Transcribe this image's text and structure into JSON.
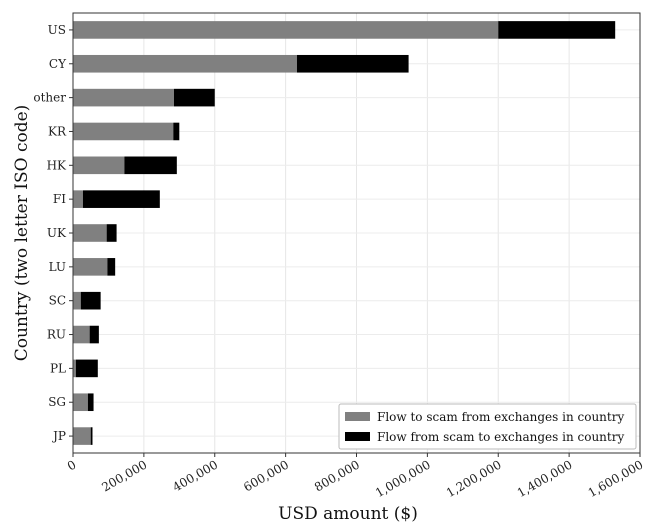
{
  "chart_data": {
    "type": "bar",
    "orientation": "horizontal",
    "stacked": true,
    "categories": [
      "US",
      "CY",
      "other",
      "KR",
      "HK",
      "FI",
      "UK",
      "LU",
      "SC",
      "RU",
      "PL",
      "SG",
      "JP"
    ],
    "series": [
      {
        "name": "Flow to scam from exchanges in country",
        "color": "#808080",
        "values": [
          1200000,
          632000,
          285000,
          283000,
          145000,
          28000,
          95000,
          97000,
          22000,
          47000,
          8000,
          42000,
          50000
        ]
      },
      {
        "name": "Flow from scam to exchanges in country",
        "color": "#000000",
        "values": [
          330000,
          315000,
          115000,
          17000,
          148000,
          217000,
          28000,
          22000,
          56000,
          26000,
          62000,
          16000,
          5000
        ]
      }
    ],
    "xlabel": "USD amount ($)",
    "ylabel": "Country (two letter ISO code)",
    "xticks": [
      "0",
      "200,000",
      "400,000",
      "600,000",
      "800,000",
      "1,000,000",
      "1,200,000",
      "1,400,000",
      "1,600,000"
    ],
    "xlim": [
      0,
      1600000
    ],
    "grid": true,
    "legend_position": "lower-right"
  }
}
